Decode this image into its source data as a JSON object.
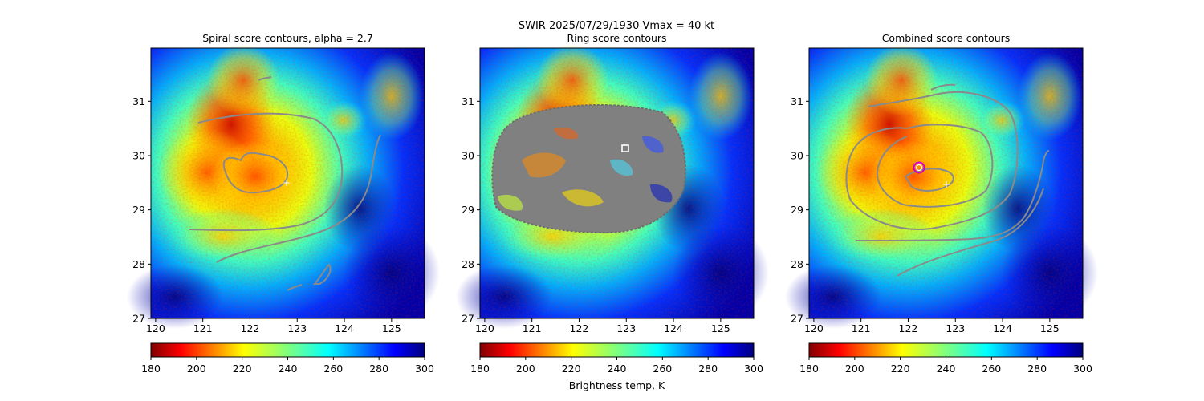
{
  "suptitle": "SWIR  2025/07/29/1930    Vmax = 40 kt",
  "colorbar_label": "Brightness temp, K",
  "chart_data": [
    {
      "type": "heatmap",
      "title": "Spiral score contours, alpha =  2.7",
      "x_ticks": [
        "120",
        "121",
        "122",
        "123",
        "124",
        "125"
      ],
      "y_ticks": [
        "27",
        "28",
        "29",
        "30",
        "31"
      ],
      "xlim": [
        119.9,
        125.7
      ],
      "ylim": [
        27.0,
        31.98
      ],
      "colorbar_ticks": [
        "180",
        "200",
        "220",
        "240",
        "260",
        "280",
        "300"
      ],
      "colorbar_range": [
        180,
        300
      ],
      "colormap": "jet_r",
      "contour_color": "#8a8a8a",
      "center_marker": {
        "x": 122.78,
        "y": 29.45,
        "symbol": "+",
        "color": "#ffffff"
      }
    },
    {
      "type": "heatmap",
      "title": "Ring score contours",
      "x_ticks": [
        "120",
        "121",
        "122",
        "123",
        "124",
        "125"
      ],
      "y_ticks": [
        "27",
        "28",
        "29",
        "30",
        "31"
      ],
      "xlim": [
        119.9,
        125.7
      ],
      "ylim": [
        27.0,
        31.98
      ],
      "colorbar_ticks": [
        "180",
        "200",
        "220",
        "240",
        "260",
        "280",
        "300"
      ],
      "colorbar_range": [
        180,
        300
      ],
      "colormap": "jet_r",
      "contour_color": "#808080",
      "center_marker": {
        "x": 122.95,
        "y": 30.12,
        "symbol": "square",
        "color": "#ffffff"
      }
    },
    {
      "type": "heatmap",
      "title": "Combined score contours",
      "x_ticks": [
        "120",
        "121",
        "122",
        "123",
        "124",
        "125"
      ],
      "y_ticks": [
        "27",
        "28",
        "29",
        "30",
        "31"
      ],
      "xlim": [
        119.9,
        125.7
      ],
      "ylim": [
        27.0,
        31.98
      ],
      "colorbar_ticks": [
        "180",
        "200",
        "220",
        "240",
        "260",
        "280",
        "300"
      ],
      "colorbar_range": [
        180,
        300
      ],
      "colormap": "jet_r",
      "contour_color": "#8a8a8a",
      "center_marker": {
        "x": 122.78,
        "y": 29.45,
        "symbol": "+",
        "color": "#ffffff"
      },
      "best_center": {
        "x": 122.22,
        "y": 29.75,
        "symbol": "circle",
        "color": "#d000d0"
      }
    }
  ]
}
